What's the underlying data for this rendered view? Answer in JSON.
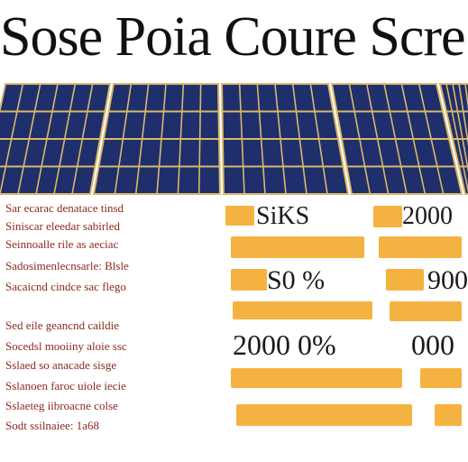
{
  "title": "Sose Poia Coure Scre",
  "colors": {
    "panel": "#1f2f6b",
    "panel_grid": "#d9b86a",
    "text": "#8b2a1e",
    "bar": "#f4b340",
    "value": "#1a1a1a"
  },
  "panels": {
    "count": 5,
    "rows": 4,
    "cols": 6
  },
  "text_lines": [
    "Sar ecarac denatace tinsd",
    "Siniscar eleedar sabirled",
    "Seinnoalle rile as aeciac",
    "Sadosimenlecnsarle: Blsle",
    "Sacaicnd cindce sac flego",
    "",
    "Sed eile geancnd caildie",
    "Socedsl mooiiny aloie ssc",
    "Sslaed so anacade sisge",
    "Sslanoen faroc uiole iecie",
    "Sslaeteg iibroacne colse",
    "Sodt ssilnaiee: 1a68"
  ],
  "values": {
    "row1_left": "SiKS",
    "row1_right": "2000",
    "row2_left": "S0 %",
    "row2_right": "900",
    "row3_left": "2000 0%",
    "row3_right": "000"
  }
}
